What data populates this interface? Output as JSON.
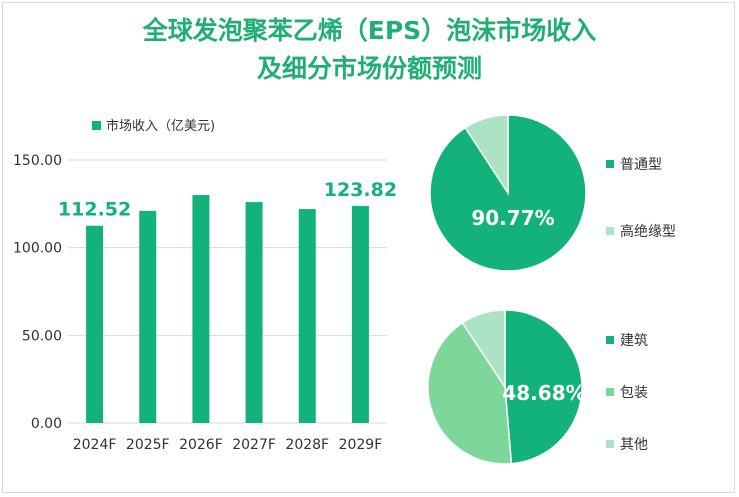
{
  "title_line1": "全球发泡聚苯乙烯（EPS）泡沫市场收入",
  "title_line2": "及细分市场份额预测",
  "colors": {
    "bar": "#12b27a",
    "pie_primary": "#12b27a",
    "pie_light": "#abe3c4",
    "pie_mid": "#7dd69a",
    "title": "#1fae73",
    "grid": "#d9d9d9",
    "text": "#333333"
  },
  "chart_data": [
    {
      "type": "bar",
      "series": [
        {
          "name": "市场收入（亿美元)",
          "values": [
            112.52,
            121.0,
            130.0,
            126.0,
            122.0,
            123.82
          ]
        }
      ],
      "categories": [
        "2024F",
        "2025F",
        "2026F",
        "2027F",
        "2028F",
        "2029F"
      ],
      "ylim": [
        0,
        150
      ],
      "yticks": [
        "0.00",
        "50.00",
        "100.00",
        "150.00"
      ],
      "data_labels": [
        {
          "index": 0,
          "text": "112.52"
        },
        {
          "index": 5,
          "text": "123.82"
        }
      ],
      "legend_position": "top-left",
      "grid": true
    },
    {
      "type": "pie",
      "labels": [
        "普通型",
        "高绝缘型"
      ],
      "values": [
        90.77,
        9.23
      ],
      "data_label": "90.77%",
      "legend_position": "right"
    },
    {
      "type": "pie",
      "labels": [
        "建筑",
        "包装",
        "其他"
      ],
      "values": [
        48.68,
        42.0,
        9.32
      ],
      "data_label": "48.68%",
      "legend_position": "right"
    }
  ]
}
